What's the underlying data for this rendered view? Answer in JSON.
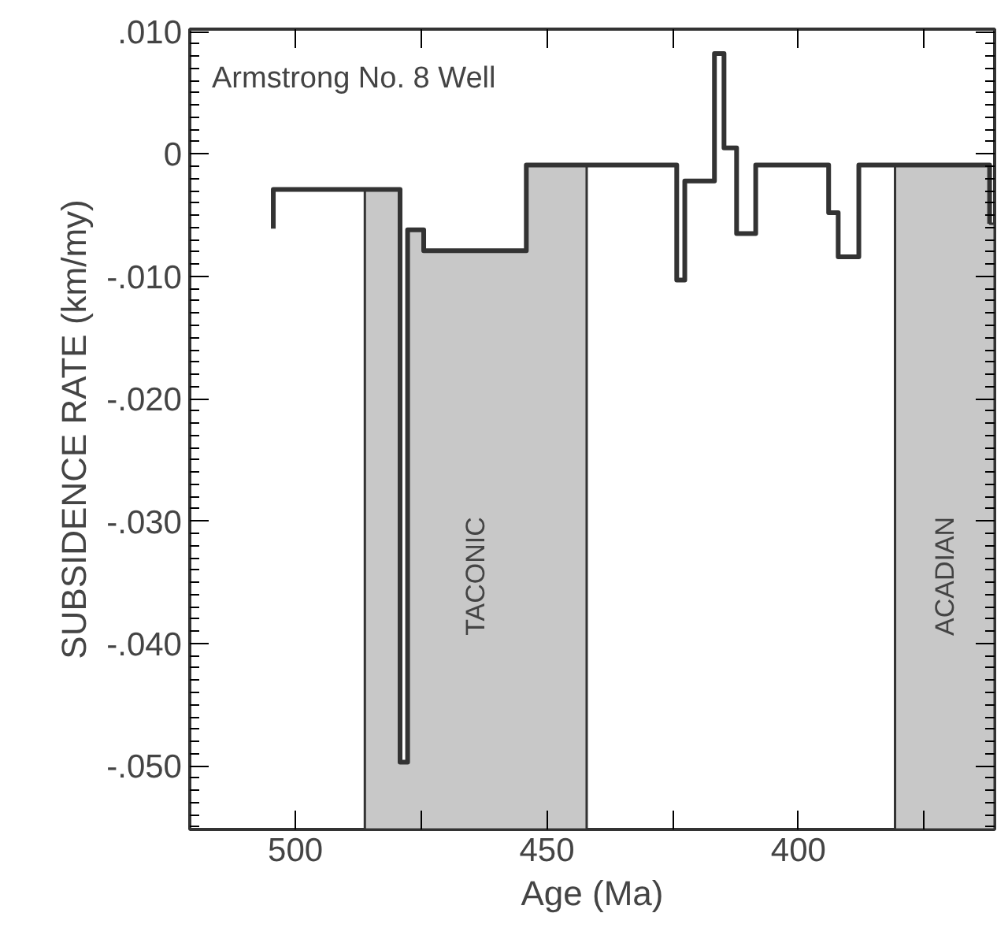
{
  "chart_data": {
    "type": "line",
    "xlabel": "Age (Ma)",
    "ylabel": "SUBSIDENCE RATE (km/my)",
    "annotations": [
      "Armstrong No. 8 Well"
    ],
    "x": [
      504.4,
      504.4,
      479.2,
      479.2,
      477.7,
      477.7,
      474.5,
      474.5,
      454.1,
      454.1,
      424.2,
      424.2,
      422.6,
      422.6,
      416.7,
      416.7,
      414.8,
      414.8,
      412.3,
      412.3,
      408.5,
      408.5,
      394.0,
      394.0,
      392.1,
      392.1,
      388.0,
      388.0,
      362.0,
      362.0
    ],
    "series": [
      {
        "color": "#333333",
        "values": [
          -0.0061,
          -0.0029,
          -0.0029,
          -0.0497,
          -0.0497,
          -0.0062,
          -0.0062,
          -0.0079,
          -0.0079,
          -0.0009,
          -0.0009,
          -0.0103,
          -0.0103,
          -0.0022,
          -0.0022,
          0.0082,
          0.0082,
          0.0005,
          0.0005,
          -0.0065,
          -0.0065,
          -0.0009,
          -0.0009,
          -0.0048,
          -0.0048,
          -0.0084,
          -0.0084,
          -0.0009,
          -0.0009,
          -0.0057
        ]
      }
    ],
    "xlim": [
      521,
      361
    ],
    "ylim": [
      -0.0552,
      0.0102
    ],
    "xticks": [
      500,
      {
        "value": 475,
        "label": null
      },
      450,
      {
        "value": 425,
        "label": null
      },
      400,
      {
        "value": 375,
        "label": null
      }
    ],
    "yticks": [
      {
        "value": 0.01,
        "label": ".010"
      },
      0,
      {
        "value": -0.01,
        "label": "-.010"
      },
      {
        "value": -0.02,
        "label": "-.020"
      },
      {
        "value": -0.03,
        "label": "-.030"
      },
      {
        "value": -0.04,
        "label": "-.040"
      },
      {
        "value": -0.05,
        "label": "-.050"
      }
    ],
    "bands": [
      {
        "axis": "x",
        "from": 486.2,
        "to": 442.1,
        "label": "TACONIC",
        "color": "#c8c8c8"
      },
      {
        "axis": "x",
        "from": 380.8,
        "to": 361,
        "label": "ACADIAN",
        "color": "#c8c8c8"
      }
    ],
    "grid": false,
    "line_style": "solid"
  }
}
